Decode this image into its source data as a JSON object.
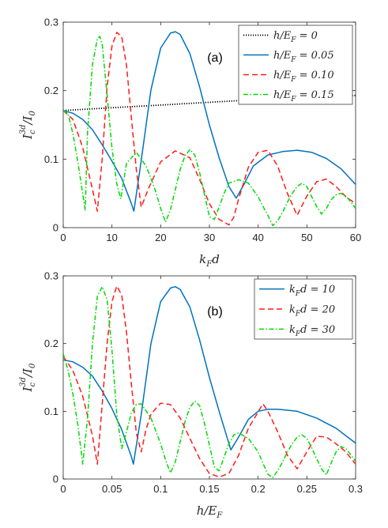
{
  "chart_data": [
    {
      "type": "line",
      "panel_label": "(a)",
      "xlabel": "k_F d",
      "ylabel": "I_c^3d / I_0",
      "xlim": [
        0,
        60
      ],
      "ylim": [
        0,
        0.3
      ],
      "xticks": [
        "0",
        "10",
        "20",
        "30",
        "40",
        "50",
        "60"
      ],
      "yticks": [
        "0",
        "0.1",
        "0.2",
        "0.3"
      ],
      "grid": false,
      "legend_position": "top-right",
      "series": [
        {
          "name": "h/E_F = 0",
          "legend": {
            "pre": "h/E",
            "sub": "F",
            "post": " = 0"
          },
          "color": "#000000",
          "dash": "1.2,1.8",
          "x": [
            0,
            10,
            20,
            30,
            40,
            50,
            60
          ],
          "y": [
            0.171,
            0.175,
            0.179,
            0.183,
            0.187,
            0.19,
            0.193
          ]
        },
        {
          "name": "h/E_F = 0.05",
          "legend": {
            "pre": "h/E",
            "sub": "F",
            "post": " = 0.05"
          },
          "color": "#0072BD",
          "dash": "",
          "x": [
            0,
            2,
            4,
            6,
            8,
            10,
            12,
            14,
            14.5,
            16,
            18,
            20,
            22,
            23,
            24,
            26,
            28,
            30,
            32,
            34,
            35.5,
            37,
            39,
            42,
            45,
            48,
            51,
            54,
            57,
            60
          ],
          "y": [
            0.171,
            0.167,
            0.158,
            0.143,
            0.121,
            0.097,
            0.072,
            0.035,
            0.024,
            0.098,
            0.201,
            0.262,
            0.284,
            0.286,
            0.282,
            0.254,
            0.205,
            0.15,
            0.102,
            0.06,
            0.043,
            0.062,
            0.09,
            0.106,
            0.111,
            0.113,
            0.11,
            0.101,
            0.086,
            0.063
          ]
        },
        {
          "name": "h/E_F = 0.10",
          "legend": {
            "pre": "h/E",
            "sub": "F",
            "post": " = 0.10"
          },
          "color": "#FF1A1A",
          "dash": "7,4",
          "x": [
            0,
            2,
            4,
            6,
            7,
            8,
            9,
            10,
            11,
            12,
            13,
            14,
            15,
            16,
            17.5,
            20,
            23,
            26,
            28,
            30,
            32,
            34,
            35,
            36,
            38,
            40,
            42,
            44,
            46,
            48,
            50,
            52,
            54,
            56,
            58,
            60
          ],
          "y": [
            0.171,
            0.158,
            0.117,
            0.056,
            0.024,
            0.1,
            0.205,
            0.265,
            0.285,
            0.279,
            0.236,
            0.16,
            0.085,
            0.03,
            0.057,
            0.096,
            0.112,
            0.102,
            0.07,
            0.035,
            0.012,
            0.004,
            0.015,
            0.042,
            0.088,
            0.11,
            0.113,
            0.09,
            0.05,
            0.018,
            0.046,
            0.067,
            0.071,
            0.06,
            0.045,
            0.035
          ]
        },
        {
          "name": "h/E_F = 0.15",
          "legend": {
            "pre": "h/E",
            "sub": "F",
            "post": " = 0.15"
          },
          "color": "#00D900",
          "dash": "6,2.5,1.5,2.5",
          "x": [
            0,
            1,
            2,
            3,
            4.5,
            5,
            6,
            7,
            7.5,
            8,
            9,
            10,
            11,
            11.8,
            13,
            15,
            17,
            18,
            19,
            20,
            21,
            22,
            23,
            24,
            25,
            26,
            27,
            28,
            29,
            30,
            31,
            32,
            33,
            34,
            36,
            38,
            40,
            41,
            42,
            43,
            44,
            45,
            46,
            47,
            48,
            49,
            50,
            51,
            52,
            53,
            54,
            55,
            56,
            57,
            58,
            59,
            60
          ],
          "y": [
            0.171,
            0.166,
            0.137,
            0.096,
            0.026,
            0.14,
            0.238,
            0.276,
            0.279,
            0.268,
            0.194,
            0.116,
            0.064,
            0.042,
            0.094,
            0.11,
            0.09,
            0.072,
            0.052,
            0.028,
            0.008,
            0.026,
            0.055,
            0.085,
            0.105,
            0.114,
            0.106,
            0.08,
            0.048,
            0.016,
            0.012,
            0.03,
            0.05,
            0.065,
            0.07,
            0.065,
            0.045,
            0.031,
            0.018,
            0.003,
            0.01,
            0.022,
            0.037,
            0.05,
            0.06,
            0.065,
            0.06,
            0.045,
            0.031,
            0.02,
            0.028,
            0.041,
            0.048,
            0.05,
            0.046,
            0.038,
            0.028
          ]
        }
      ]
    },
    {
      "type": "line",
      "panel_label": "(b)",
      "xlabel": "h/E_F",
      "ylabel": "I_c^3d / I_0",
      "xlim": [
        0,
        0.3
      ],
      "ylim": [
        0,
        0.3
      ],
      "xticks": [
        "0",
        "0.05",
        "0.1",
        "0.15",
        "0.2",
        "0.25",
        "0.3"
      ],
      "yticks": [
        "0",
        "0.1",
        "0.2",
        "0.3"
      ],
      "grid": false,
      "legend_position": "top-right",
      "series": [
        {
          "name": "k_F d = 10",
          "legend": {
            "pre": "k",
            "sub": "F",
            "post": "d = 10"
          },
          "color": "#0072BD",
          "dash": "",
          "x": [
            0,
            0.01,
            0.02,
            0.03,
            0.04,
            0.05,
            0.06,
            0.07,
            0.072,
            0.08,
            0.09,
            0.1,
            0.11,
            0.115,
            0.12,
            0.13,
            0.14,
            0.15,
            0.16,
            0.172,
            0.18,
            0.19,
            0.2,
            0.21,
            0.22,
            0.24,
            0.26,
            0.28,
            0.3
          ],
          "y": [
            0.176,
            0.173,
            0.165,
            0.152,
            0.13,
            0.104,
            0.073,
            0.033,
            0.022,
            0.095,
            0.2,
            0.262,
            0.282,
            0.284,
            0.28,
            0.254,
            0.205,
            0.15,
            0.1,
            0.043,
            0.062,
            0.088,
            0.1,
            0.103,
            0.103,
            0.1,
            0.09,
            0.075,
            0.053
          ]
        },
        {
          "name": "k_F d = 20",
          "legend": {
            "pre": "k",
            "sub": "F",
            "post": "d = 20"
          },
          "color": "#FF1A1A",
          "dash": "7,4",
          "x": [
            0,
            0.01,
            0.02,
            0.03,
            0.035,
            0.04,
            0.045,
            0.05,
            0.055,
            0.06,
            0.065,
            0.07,
            0.075,
            0.08,
            0.085,
            0.09,
            0.1,
            0.11,
            0.12,
            0.13,
            0.14,
            0.15,
            0.16,
            0.17,
            0.18,
            0.19,
            0.205,
            0.21,
            0.22,
            0.23,
            0.24,
            0.25,
            0.26,
            0.27,
            0.28,
            0.29,
            0.3
          ],
          "y": [
            0.181,
            0.16,
            0.122,
            0.064,
            0.022,
            0.11,
            0.2,
            0.262,
            0.285,
            0.272,
            0.215,
            0.14,
            0.068,
            0.04,
            0.073,
            0.096,
            0.112,
            0.11,
            0.09,
            0.06,
            0.03,
            0.008,
            0.003,
            0.008,
            0.035,
            0.075,
            0.111,
            0.1,
            0.07,
            0.035,
            0.015,
            0.04,
            0.063,
            0.062,
            0.052,
            0.04,
            0.022
          ]
        },
        {
          "name": "k_F d = 30",
          "legend": {
            "pre": "k",
            "sub": "F",
            "post": "d = 30"
          },
          "color": "#00D900",
          "dash": "6,2.5,1.5,2.5",
          "x": [
            0,
            0.005,
            0.01,
            0.015,
            0.02,
            0.025,
            0.03,
            0.035,
            0.04,
            0.045,
            0.05,
            0.055,
            0.06,
            0.065,
            0.07,
            0.075,
            0.08,
            0.09,
            0.1,
            0.105,
            0.11,
            0.115,
            0.12,
            0.125,
            0.13,
            0.135,
            0.14,
            0.145,
            0.15,
            0.155,
            0.16,
            0.165,
            0.17,
            0.175,
            0.18,
            0.19,
            0.2,
            0.205,
            0.21,
            0.215,
            0.22,
            0.225,
            0.23,
            0.235,
            0.24,
            0.245,
            0.25,
            0.255,
            0.26,
            0.265,
            0.27,
            0.275,
            0.28,
            0.285,
            0.29,
            0.295,
            0.3
          ],
          "y": [
            0.185,
            0.16,
            0.125,
            0.08,
            0.022,
            0.09,
            0.2,
            0.27,
            0.284,
            0.265,
            0.19,
            0.095,
            0.045,
            0.07,
            0.098,
            0.11,
            0.111,
            0.09,
            0.052,
            0.028,
            0.009,
            0.025,
            0.055,
            0.085,
            0.106,
            0.115,
            0.108,
            0.082,
            0.05,
            0.018,
            0.012,
            0.032,
            0.052,
            0.065,
            0.068,
            0.06,
            0.04,
            0.023,
            0.007,
            0.002,
            0.012,
            0.025,
            0.04,
            0.052,
            0.062,
            0.065,
            0.06,
            0.046,
            0.03,
            0.015,
            0.006,
            0.024,
            0.04,
            0.048,
            0.045,
            0.036,
            0.026
          ]
        }
      ]
    }
  ]
}
